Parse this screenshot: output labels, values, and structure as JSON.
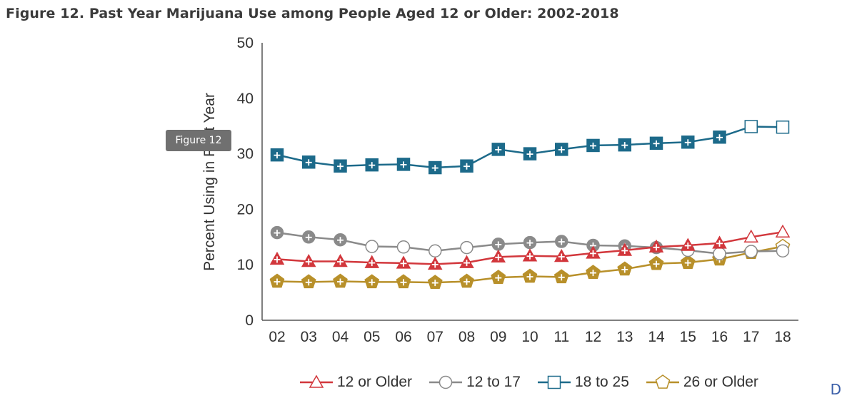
{
  "title": "Figure 12. Past Year Marijuana Use among People Aged 12 or Older: 2002-2018",
  "tooltip": "Figure 12",
  "corner_text": "D",
  "chart_data": {
    "type": "line",
    "title": "Figure 12. Past Year Marijuana Use among People Aged 12 or Older: 2002-2018",
    "xlabel": "",
    "ylabel": "Percent Using in Past Year",
    "categories": [
      "02",
      "03",
      "04",
      "05",
      "06",
      "07",
      "08",
      "09",
      "10",
      "11",
      "12",
      "13",
      "14",
      "15",
      "16",
      "17",
      "18"
    ],
    "ylim": [
      0,
      50
    ],
    "yticks": [
      0,
      10,
      20,
      30,
      40,
      50
    ],
    "legend_position": "bottom",
    "series": [
      {
        "name": "12 or Older",
        "marker": "triangle",
        "color": "#d2373c",
        "values": [
          11.0,
          10.6,
          10.6,
          10.4,
          10.3,
          10.1,
          10.4,
          11.4,
          11.6,
          11.5,
          12.1,
          12.6,
          13.2,
          13.5,
          13.9,
          15.0,
          15.9
        ],
        "significant": [
          true,
          true,
          true,
          true,
          true,
          true,
          true,
          true,
          true,
          true,
          true,
          true,
          true,
          true,
          true,
          false,
          false
        ]
      },
      {
        "name": "12 to 17",
        "marker": "circle",
        "color": "#8a8a8a",
        "values": [
          15.8,
          15.0,
          14.5,
          13.3,
          13.2,
          12.5,
          13.1,
          13.7,
          14.0,
          14.2,
          13.5,
          13.4,
          13.1,
          12.6,
          12.0,
          12.4,
          12.5
        ],
        "significant": [
          true,
          true,
          true,
          false,
          false,
          false,
          false,
          true,
          true,
          true,
          true,
          true,
          true,
          false,
          false,
          false,
          false
        ]
      },
      {
        "name": "18 to 25",
        "marker": "square",
        "color": "#1c6a8a",
        "values": [
          29.8,
          28.5,
          27.8,
          28.0,
          28.1,
          27.5,
          27.8,
          30.8,
          30.0,
          30.8,
          31.5,
          31.6,
          31.9,
          32.1,
          33.0,
          34.9,
          34.8
        ],
        "significant": [
          true,
          true,
          true,
          true,
          true,
          true,
          true,
          true,
          true,
          true,
          true,
          true,
          true,
          true,
          true,
          false,
          false
        ]
      },
      {
        "name": "26 or Older",
        "marker": "pentagon",
        "color": "#b8902a",
        "values": [
          7.0,
          6.9,
          7.0,
          6.9,
          6.9,
          6.8,
          7.0,
          7.7,
          7.9,
          7.8,
          8.6,
          9.2,
          10.2,
          10.4,
          11.0,
          12.2,
          13.3
        ],
        "significant": [
          true,
          true,
          true,
          true,
          true,
          true,
          true,
          true,
          true,
          true,
          true,
          true,
          true,
          true,
          true,
          true,
          false
        ]
      }
    ]
  }
}
